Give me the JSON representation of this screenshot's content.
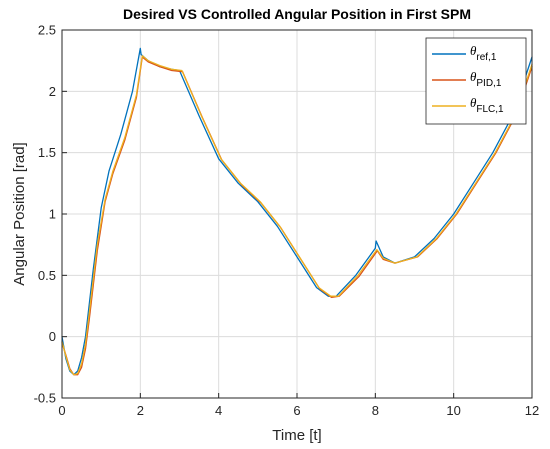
{
  "chart_data": {
    "type": "line",
    "title": "Desired VS Controlled Angular Position in First SPM",
    "xlabel": "Time [t]",
    "ylabel": "Angular Position [rad]",
    "xlim": [
      0,
      12
    ],
    "ylim": [
      -0.5,
      2.5
    ],
    "xticks": [
      0,
      2,
      4,
      6,
      8,
      10,
      12
    ],
    "yticks": [
      -0.5,
      0,
      0.5,
      1,
      1.5,
      2,
      2.5
    ],
    "xtick_labels": [
      "0",
      "2",
      "4",
      "6",
      "8",
      "10",
      "12"
    ],
    "ytick_labels": [
      "-0.5",
      "0",
      "0.5",
      "1",
      "1.5",
      "2",
      "2.5"
    ],
    "grid": true,
    "legend_position": "top-right",
    "series": [
      {
        "symbol": "θ",
        "subscript": "ref,1",
        "color": "#0072BD",
        "x": [
          0,
          0.1,
          0.2,
          0.3,
          0.4,
          0.5,
          0.6,
          0.8,
          1.0,
          1.2,
          1.5,
          1.8,
          2.0,
          2.02,
          2.2,
          2.5,
          2.8,
          3.0,
          3.5,
          4.0,
          4.5,
          5.0,
          5.5,
          6.0,
          6.5,
          6.8,
          7.0,
          7.5,
          8.0,
          8.02,
          8.2,
          8.5,
          9.0,
          9.5,
          10.0,
          10.5,
          11.0,
          11.5,
          12.0
        ],
        "y": [
          0.0,
          -0.18,
          -0.28,
          -0.31,
          -0.28,
          -0.17,
          0.0,
          0.55,
          1.05,
          1.35,
          1.65,
          2.0,
          2.35,
          2.3,
          2.25,
          2.2,
          2.18,
          2.17,
          1.8,
          1.45,
          1.25,
          1.1,
          0.9,
          0.65,
          0.4,
          0.33,
          0.33,
          0.5,
          0.72,
          0.78,
          0.65,
          0.6,
          0.65,
          0.8,
          1.0,
          1.25,
          1.5,
          1.8,
          2.28
        ]
      },
      {
        "symbol": "θ",
        "subscript": "PID,1",
        "color": "#D95319",
        "x": [
          0,
          0.1,
          0.2,
          0.3,
          0.4,
          0.5,
          0.6,
          0.7,
          0.9,
          1.1,
          1.3,
          1.6,
          1.9,
          2.05,
          2.2,
          2.5,
          2.8,
          3.08,
          3.58,
          4.08,
          4.58,
          5.08,
          5.58,
          6.08,
          6.58,
          6.88,
          7.08,
          7.58,
          8.05,
          8.2,
          8.5,
          9.08,
          9.58,
          10.08,
          10.58,
          11.08,
          11.58,
          12.0
        ],
        "y": [
          -0.05,
          -0.15,
          -0.26,
          -0.31,
          -0.31,
          -0.25,
          -0.1,
          0.15,
          0.7,
          1.1,
          1.33,
          1.6,
          1.95,
          2.28,
          2.24,
          2.2,
          2.17,
          2.16,
          1.79,
          1.44,
          1.24,
          1.09,
          0.89,
          0.64,
          0.39,
          0.32,
          0.33,
          0.49,
          0.7,
          0.63,
          0.6,
          0.65,
          0.8,
          1.0,
          1.25,
          1.5,
          1.8,
          2.2
        ]
      },
      {
        "symbol": "θ",
        "subscript": "FLC,1",
        "color": "#EDB120",
        "x": [
          0,
          0.1,
          0.2,
          0.3,
          0.4,
          0.5,
          0.6,
          0.7,
          0.9,
          1.1,
          1.3,
          1.6,
          1.9,
          2.05,
          2.2,
          2.5,
          2.8,
          3.06,
          3.56,
          4.06,
          4.56,
          5.06,
          5.56,
          6.06,
          6.56,
          6.86,
          7.06,
          7.56,
          8.04,
          8.2,
          8.5,
          9.06,
          9.56,
          10.06,
          10.56,
          11.06,
          11.56,
          12.0
        ],
        "y": [
          -0.04,
          -0.16,
          -0.27,
          -0.31,
          -0.3,
          -0.22,
          -0.06,
          0.2,
          0.75,
          1.12,
          1.35,
          1.62,
          1.97,
          2.29,
          2.25,
          2.21,
          2.18,
          2.17,
          1.8,
          1.45,
          1.25,
          1.1,
          0.9,
          0.65,
          0.4,
          0.33,
          0.33,
          0.5,
          0.71,
          0.64,
          0.6,
          0.65,
          0.8,
          1.0,
          1.25,
          1.5,
          1.8,
          2.22
        ]
      }
    ]
  }
}
